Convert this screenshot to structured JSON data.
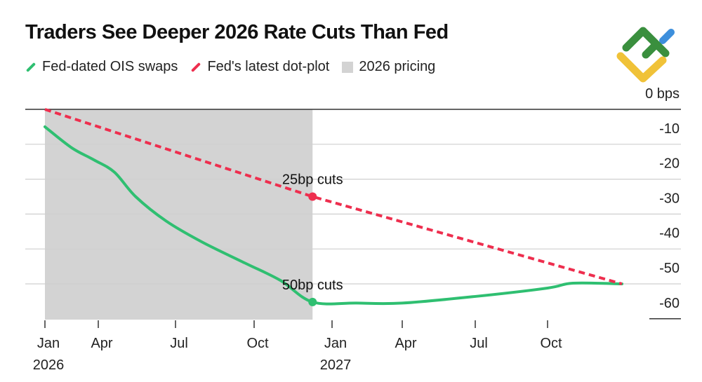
{
  "chart_data": {
    "type": "line",
    "title": "Traders See Deeper 2026 Rate Cuts Than Fed",
    "y_unit_label": "0 bps",
    "ylim": [
      -60,
      0
    ],
    "y_ticks": [
      0,
      -10,
      -20,
      -30,
      -40,
      -50,
      -60
    ],
    "y_tick_labels": [
      "0 bps",
      "-10",
      "-20",
      "-30",
      "-40",
      "-50",
      "-60"
    ],
    "x_ticks": [
      {
        "date": "2026-01-01",
        "label": "Jan",
        "sublabel": "2026"
      },
      {
        "date": "2026-04-01",
        "label": "Apr",
        "sublabel": ""
      },
      {
        "date": "2026-07-01",
        "label": "Jul",
        "sublabel": ""
      },
      {
        "date": "2026-10-01",
        "label": "Oct",
        "sublabel": ""
      },
      {
        "date": "2027-01-01",
        "label": "Jan",
        "sublabel": "2027"
      },
      {
        "date": "2027-04-01",
        "label": "Apr",
        "sublabel": ""
      },
      {
        "date": "2027-07-01",
        "label": "Jul",
        "sublabel": ""
      },
      {
        "date": "2027-10-01",
        "label": "Oct",
        "sublabel": ""
      }
    ],
    "grid": true,
    "legend_placement": "top-left",
    "shaded_region": {
      "name": "2026 pricing",
      "from": "2026-01-01",
      "to": "2026-12-09",
      "color": "#d3d3d3"
    },
    "series": [
      {
        "name": "Fed-dated OIS swaps",
        "color": "#2fbf71",
        "style": "solid",
        "points": [
          [
            "2026-01-01",
            -5
          ],
          [
            "2026-02-15",
            -11
          ],
          [
            "2026-03-25",
            -14.5
          ],
          [
            "2026-04-20",
            -18
          ],
          [
            "2026-05-15",
            -25
          ],
          [
            "2026-06-20",
            -32
          ],
          [
            "2026-08-01",
            -38
          ],
          [
            "2026-09-20",
            -44
          ],
          [
            "2026-11-01",
            -49
          ],
          [
            "2026-12-09",
            -55.2
          ],
          [
            "2027-02-01",
            -55.5
          ],
          [
            "2027-04-01",
            -55.5
          ],
          [
            "2027-07-01",
            -53.6
          ],
          [
            "2027-10-01",
            -51.2
          ],
          [
            "2027-11-01",
            -49.8
          ],
          [
            "2027-12-31",
            -50
          ]
        ]
      },
      {
        "name": "Fed's latest dot-plot",
        "color": "#ee2e4e",
        "style": "dashed",
        "points": [
          [
            "2026-01-01",
            0
          ],
          [
            "2026-12-09",
            -25
          ],
          [
            "2027-12-31",
            -50
          ]
        ]
      }
    ],
    "annotations": [
      {
        "text": "25bp cuts",
        "date": "2026-12-09",
        "value": -25,
        "series": "Fed's latest dot-plot"
      },
      {
        "text": "50bp cuts",
        "date": "2026-12-09",
        "value": -55.2,
        "series": "Fed-dated OIS swaps"
      }
    ]
  },
  "logo": {
    "colors": [
      "#3a8f3e",
      "#3d8fdc",
      "#f0c238"
    ]
  }
}
